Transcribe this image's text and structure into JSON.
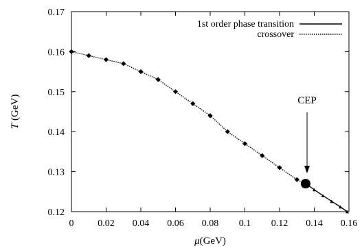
{
  "chart_data": {
    "type": "line",
    "xlabel_symbol": "μ",
    "xlabel_unit": "(GeV)",
    "ylabel_symbol": "T",
    "ylabel_unit": "(GeV)",
    "xlim": [
      0,
      0.16
    ],
    "ylim": [
      0.12,
      0.17
    ],
    "x_ticks": [
      "0",
      "0.02",
      "0.04",
      "0.06",
      "0.08",
      "0.1",
      "0.12",
      "0.14",
      "0.16"
    ],
    "y_ticks": [
      "0.12",
      "0.13",
      "0.14",
      "0.15",
      "0.16",
      "0.17"
    ],
    "x_tick_values": [
      0,
      0.02,
      0.04,
      0.06,
      0.08,
      0.1,
      0.12,
      0.14,
      0.16
    ],
    "y_tick_values": [
      0.12,
      0.13,
      0.14,
      0.15,
      0.16,
      0.17
    ],
    "legend_position": "top-right",
    "series": [
      {
        "name": "1st order phase transition",
        "style": "solid",
        "x": [
          0.135,
          0.14,
          0.145,
          0.15,
          0.155,
          0.159
        ],
        "y": [
          0.127,
          0.1255,
          0.124,
          0.1226,
          0.1212,
          0.12
        ]
      },
      {
        "name": "crossover",
        "style": "dotted",
        "x": [
          0,
          0.01,
          0.02,
          0.03,
          0.04,
          0.05,
          0.06,
          0.07,
          0.08,
          0.09,
          0.1,
          0.11,
          0.12,
          0.13,
          0.135
        ],
        "y": [
          0.16,
          0.159,
          0.158,
          0.157,
          0.155,
          0.153,
          0.15,
          0.147,
          0.144,
          0.14,
          0.137,
          0.134,
          0.131,
          0.128,
          0.127
        ]
      }
    ],
    "cep_point": {
      "x": 0.135,
      "y": 0.127
    },
    "annotation": "CEP"
  }
}
